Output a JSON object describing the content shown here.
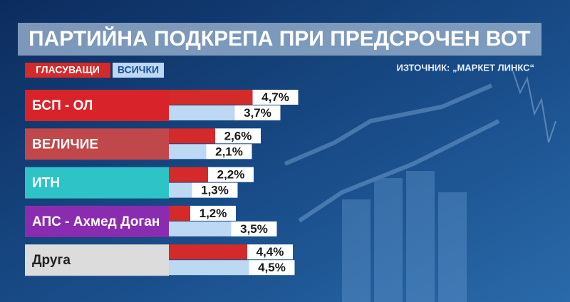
{
  "chart_data": {
    "type": "bar",
    "orientation": "horizontal",
    "title": "ПАРТИЙНА ПОДКРЕПА ПРИ ПРЕДСРОЧЕН ВОТ",
    "source": "ИЗТОЧНИК: „МАРКЕТ ЛИНКС“",
    "categories": [
      "БСП - ОЛ",
      "ВЕЛИЧИЕ",
      "ИТН",
      "АПС - Ахмед Доган",
      "Друга"
    ],
    "category_colors": [
      "#d8232a",
      "#c0474a",
      "#2ec3c6",
      "#8a2cb0",
      "#dcdcdc"
    ],
    "series": [
      {
        "name": "ГЛАСУВАЩИ",
        "color": "#d42a2a",
        "values": [
          4.7,
          2.6,
          2.2,
          1.2,
          4.4
        ],
        "value_labels": [
          "4,7%",
          "2,6%",
          "2,2%",
          "1,2%",
          "4,4%"
        ]
      },
      {
        "name": "ВСИЧКИ",
        "color": "#bcd8f3",
        "values": [
          3.7,
          2.1,
          1.3,
          3.5,
          4.5
        ],
        "value_labels": [
          "3,7%",
          "2,1%",
          "1,3%",
          "3,5%",
          "4,5%"
        ]
      }
    ],
    "xlim": [
      0,
      20
    ]
  }
}
